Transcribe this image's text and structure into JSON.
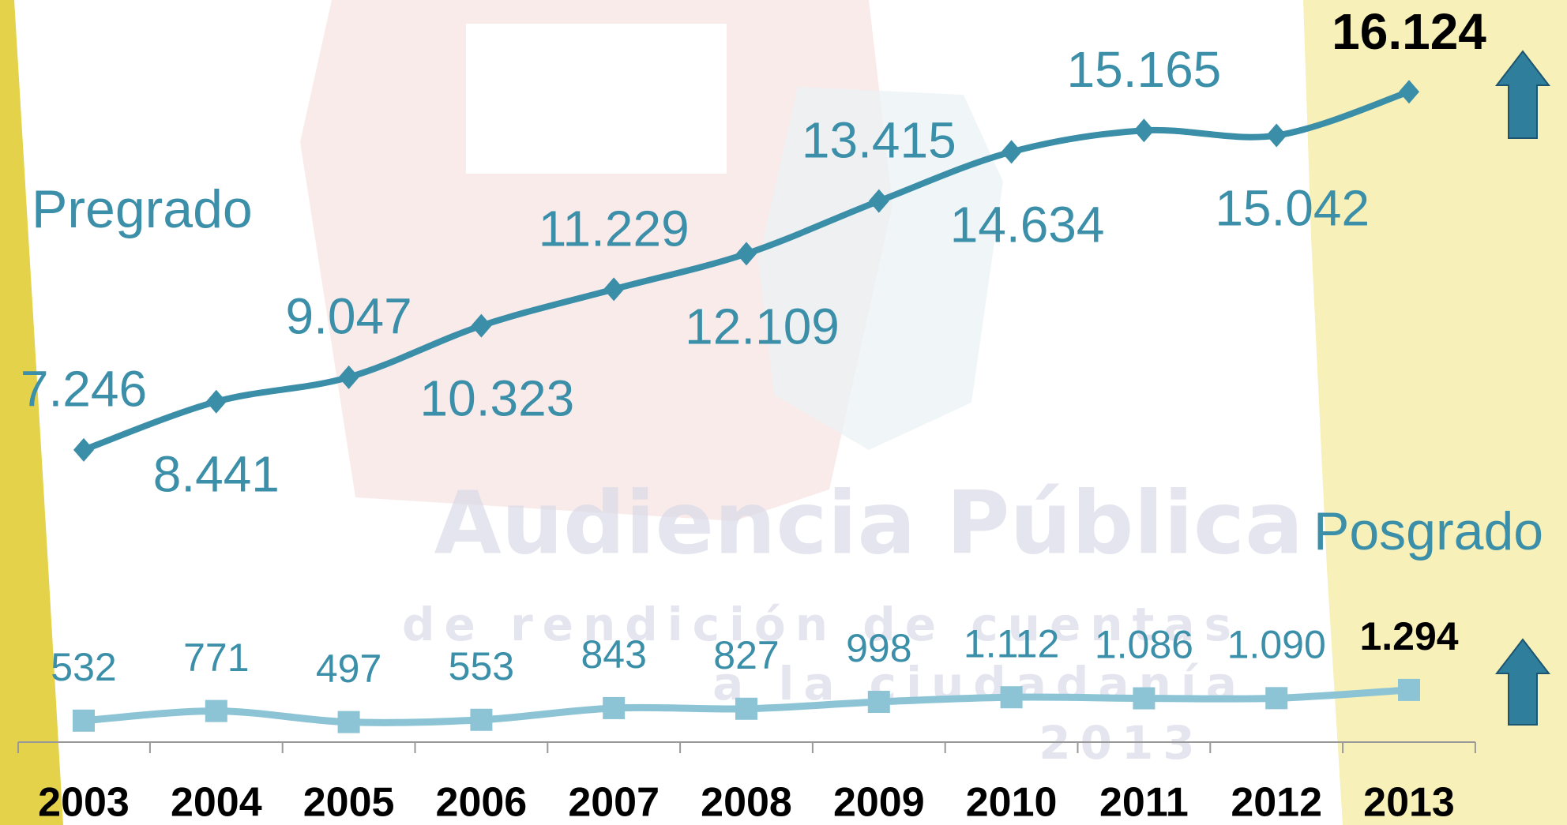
{
  "chart_data": {
    "type": "line",
    "categories": [
      "2003",
      "2004",
      "2005",
      "2006",
      "2007",
      "2008",
      "2009",
      "2010",
      "2011",
      "2012",
      "2013"
    ],
    "series": [
      {
        "name": "Pregrado",
        "color": "#3a8ea8",
        "values": [
          7246,
          8441,
          9047,
          10323,
          11229,
          12109,
          13415,
          14634,
          15165,
          15042,
          16124
        ],
        "value_labels": [
          "7.246",
          "8.441",
          "9.047",
          "10.323",
          "11.229",
          "12.109",
          "13.415",
          "14.634",
          "15.165",
          "15.042",
          "16.124"
        ]
      },
      {
        "name": "Posgrado",
        "color": "#8cc4d6",
        "values": [
          532,
          771,
          497,
          553,
          843,
          827,
          998,
          1112,
          1086,
          1090,
          1294
        ],
        "value_labels": [
          "532",
          "771",
          "497",
          "553",
          "843",
          "827",
          "998",
          "1.112",
          "1.086",
          "1.090",
          "1.294"
        ]
      }
    ],
    "ylim": [
      0,
      18400
    ],
    "watermark": [
      "Audiencia Pública",
      "de rendición de cuentas",
      "a la ciudadanía",
      "2013"
    ]
  }
}
